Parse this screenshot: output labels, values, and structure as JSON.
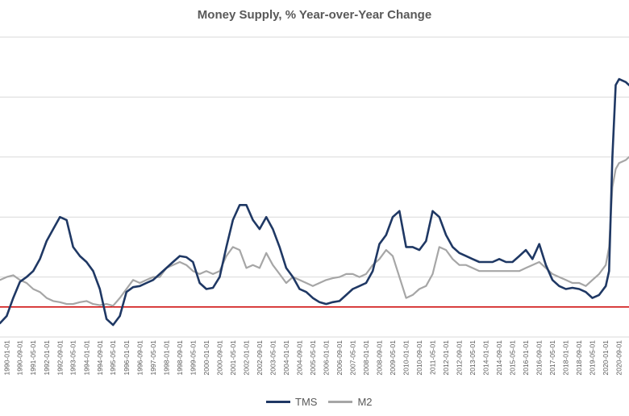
{
  "chart_data": {
    "type": "line",
    "title": "Money Supply, % Year-over-Year Change",
    "xlabel": "",
    "ylabel": "",
    "ylim": [
      -5,
      45
    ],
    "x_range": [
      "1989-09-01",
      "2021-03-01"
    ],
    "grid": "horizontal",
    "legend_position": "bottom",
    "reference_line": {
      "value": 0,
      "color": "#cc0000"
    },
    "colors": {
      "TMS": "#1f3864",
      "M2": "#a6a6a6",
      "reference": "#cc0000",
      "grid": "#d9d9d9"
    },
    "x_tick_labels": [
      "1990-01-01",
      "1990-09-01",
      "1991-05-01",
      "1992-01-01",
      "1992-09-01",
      "1993-05-01",
      "1994-01-01",
      "1994-09-01",
      "1995-05-01",
      "1996-01-01",
      "1996-09-01",
      "1997-05-01",
      "1998-01-01",
      "1998-09-01",
      "1999-05-01",
      "2000-01-01",
      "2000-09-01",
      "2001-05-01",
      "2002-01-01",
      "2002-09-01",
      "2003-05-01",
      "2004-01-01",
      "2004-09-01",
      "2005-05-01",
      "2006-01-01",
      "2006-09-01",
      "2007-05-01",
      "2008-01-01",
      "2008-09-01",
      "2009-05-01",
      "2010-01-01",
      "2010-09-01",
      "2011-05-01",
      "2012-01-01",
      "2012-09-01",
      "2013-05-01",
      "2014-01-01",
      "2014-09-01",
      "2015-05-01",
      "2016-01-01",
      "2016-09-01",
      "2017-05-01",
      "2018-01-01",
      "2018-09-01",
      "2019-05-01",
      "2020-01-01",
      "2020-09-01"
    ],
    "series": [
      {
        "name": "TMS",
        "x": [
          "1989-09-01",
          "1990-01-01",
          "1990-05-01",
          "1990-09-01",
          "1991-01-01",
          "1991-05-01",
          "1991-09-01",
          "1992-01-01",
          "1992-05-01",
          "1992-09-01",
          "1993-01-01",
          "1993-05-01",
          "1993-09-01",
          "1994-01-01",
          "1994-05-01",
          "1994-09-01",
          "1995-01-01",
          "1995-05-01",
          "1995-09-01",
          "1996-01-01",
          "1996-05-01",
          "1996-09-01",
          "1997-01-01",
          "1997-05-01",
          "1997-09-01",
          "1998-01-01",
          "1998-05-01",
          "1998-09-01",
          "1999-01-01",
          "1999-05-01",
          "1999-09-01",
          "2000-01-01",
          "2000-05-01",
          "2000-09-01",
          "2001-01-01",
          "2001-05-01",
          "2001-09-01",
          "2002-01-01",
          "2002-05-01",
          "2002-09-01",
          "2003-01-01",
          "2003-05-01",
          "2003-09-01",
          "2004-01-01",
          "2004-05-01",
          "2004-09-01",
          "2005-01-01",
          "2005-05-01",
          "2005-09-01",
          "2006-01-01",
          "2006-05-01",
          "2006-09-01",
          "2007-01-01",
          "2007-05-01",
          "2007-09-01",
          "2008-01-01",
          "2008-05-01",
          "2008-09-01",
          "2009-01-01",
          "2009-05-01",
          "2009-09-01",
          "2010-01-01",
          "2010-05-01",
          "2010-09-01",
          "2011-01-01",
          "2011-05-01",
          "2011-09-01",
          "2012-01-01",
          "2012-05-01",
          "2012-09-01",
          "2013-01-01",
          "2013-05-01",
          "2013-09-01",
          "2014-01-01",
          "2014-05-01",
          "2014-09-01",
          "2015-01-01",
          "2015-05-01",
          "2015-09-01",
          "2016-01-01",
          "2016-05-01",
          "2016-09-01",
          "2017-01-01",
          "2017-05-01",
          "2017-09-01",
          "2018-01-01",
          "2018-05-01",
          "2018-09-01",
          "2019-01-01",
          "2019-05-01",
          "2019-09-01",
          "2020-01-01",
          "2020-03-01",
          "2020-05-01",
          "2020-07-01",
          "2020-09-01",
          "2021-01-01",
          "2021-03-01"
        ],
        "y": [
          -2.7,
          -1.5,
          1.5,
          4.2,
          5.0,
          6.0,
          8.0,
          11.0,
          13.0,
          15.0,
          14.5,
          10.0,
          8.5,
          7.5,
          6.0,
          3.0,
          -2.0,
          -3.0,
          -1.5,
          2.5,
          3.3,
          3.5,
          4.0,
          4.5,
          5.5,
          6.5,
          7.5,
          8.5,
          8.3,
          7.5,
          4.0,
          3.0,
          3.2,
          5.0,
          10.0,
          14.5,
          17.0,
          17.0,
          14.5,
          13.0,
          15.0,
          13.0,
          10.0,
          6.5,
          5.0,
          3.0,
          2.5,
          1.5,
          0.8,
          0.5,
          0.8,
          1.0,
          2.0,
          3.0,
          3.5,
          4.0,
          6.0,
          10.5,
          12.0,
          15.0,
          16.0,
          10.0,
          10.0,
          9.5,
          11.0,
          16.0,
          15.0,
          12.0,
          10.0,
          9.0,
          8.5,
          8.0,
          7.5,
          7.5,
          7.5,
          8.0,
          7.5,
          7.5,
          8.5,
          9.5,
          8.0,
          10.5,
          7.0,
          4.5,
          3.5,
          3.0,
          3.2,
          3.0,
          2.5,
          1.5,
          2.0,
          3.5,
          6.0,
          25.0,
          37.0,
          38.0,
          37.5,
          37.0
        ]
      },
      {
        "name": "M2",
        "x": [
          "1989-09-01",
          "1990-01-01",
          "1990-05-01",
          "1990-09-01",
          "1991-01-01",
          "1991-05-01",
          "1991-09-01",
          "1992-01-01",
          "1992-05-01",
          "1992-09-01",
          "1993-01-01",
          "1993-05-01",
          "1993-09-01",
          "1994-01-01",
          "1994-05-01",
          "1994-09-01",
          "1995-01-01",
          "1995-05-01",
          "1995-09-01",
          "1996-01-01",
          "1996-05-01",
          "1996-09-01",
          "1997-01-01",
          "1997-05-01",
          "1997-09-01",
          "1998-01-01",
          "1998-05-01",
          "1998-09-01",
          "1999-01-01",
          "1999-05-01",
          "1999-09-01",
          "2000-01-01",
          "2000-05-01",
          "2000-09-01",
          "2001-01-01",
          "2001-05-01",
          "2001-09-01",
          "2002-01-01",
          "2002-05-01",
          "2002-09-01",
          "2003-01-01",
          "2003-05-01",
          "2003-09-01",
          "2004-01-01",
          "2004-05-01",
          "2004-09-01",
          "2005-01-01",
          "2005-05-01",
          "2005-09-01",
          "2006-01-01",
          "2006-05-01",
          "2006-09-01",
          "2007-01-01",
          "2007-05-01",
          "2007-09-01",
          "2008-01-01",
          "2008-05-01",
          "2008-09-01",
          "2009-01-01",
          "2009-05-01",
          "2009-09-01",
          "2010-01-01",
          "2010-05-01",
          "2010-09-01",
          "2011-01-01",
          "2011-05-01",
          "2011-09-01",
          "2012-01-01",
          "2012-05-01",
          "2012-09-01",
          "2013-01-01",
          "2013-05-01",
          "2013-09-01",
          "2014-01-01",
          "2014-05-01",
          "2014-09-01",
          "2015-01-01",
          "2015-05-01",
          "2015-09-01",
          "2016-01-01",
          "2016-05-01",
          "2016-09-01",
          "2017-01-01",
          "2017-05-01",
          "2017-09-01",
          "2018-01-01",
          "2018-05-01",
          "2018-09-01",
          "2019-01-01",
          "2019-05-01",
          "2019-09-01",
          "2020-01-01",
          "2020-03-01",
          "2020-05-01",
          "2020-07-01",
          "2020-09-01",
          "2021-01-01",
          "2021-03-01"
        ],
        "y": [
          4.5,
          5.0,
          5.3,
          4.5,
          4.0,
          3.0,
          2.5,
          1.5,
          1.0,
          0.8,
          0.5,
          0.5,
          0.8,
          1.0,
          0.5,
          0.3,
          0.5,
          0.2,
          1.5,
          3.0,
          4.5,
          4.0,
          4.5,
          5.0,
          5.0,
          6.5,
          7.0,
          7.5,
          7.0,
          6.0,
          5.5,
          6.0,
          5.5,
          6.0,
          8.5,
          10.0,
          9.5,
          6.5,
          7.0,
          6.5,
          9.0,
          7.0,
          5.5,
          4.0,
          5.0,
          4.5,
          4.0,
          3.5,
          4.0,
          4.5,
          4.8,
          5.0,
          5.5,
          5.5,
          5.0,
          5.5,
          7.0,
          8.0,
          9.5,
          8.5,
          5.0,
          1.5,
          2.0,
          3.0,
          3.5,
          5.5,
          10.0,
          9.5,
          8.0,
          7.0,
          7.0,
          6.5,
          6.0,
          6.0,
          6.0,
          6.0,
          6.0,
          6.0,
          6.0,
          6.5,
          7.0,
          7.5,
          6.5,
          5.5,
          5.0,
          4.5,
          4.0,
          4.0,
          3.5,
          4.5,
          5.5,
          7.0,
          10.0,
          20.0,
          23.0,
          24.0,
          24.5,
          25.0
        ]
      }
    ]
  },
  "legend": {
    "items": [
      {
        "label": "TMS"
      },
      {
        "label": "M2"
      }
    ]
  }
}
